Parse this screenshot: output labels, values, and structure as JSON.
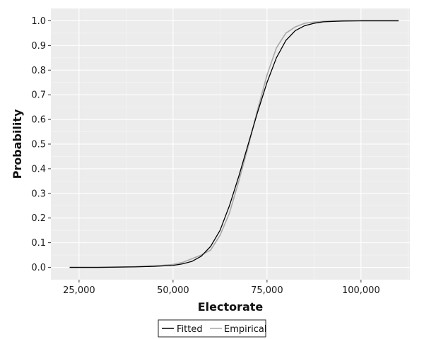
{
  "chart_data": {
    "type": "line",
    "title": "",
    "xlabel": "Electorate",
    "ylabel": "Probability",
    "xlim": [
      17500,
      113000
    ],
    "ylim": [
      0,
      1.0
    ],
    "x_ticks": [
      25000,
      50000,
      75000,
      100000
    ],
    "x_tick_labels": [
      "25,000",
      "50,000",
      "75,000",
      "100,000"
    ],
    "y_ticks": [
      0,
      0.1,
      0.2,
      0.3,
      0.4,
      0.5,
      0.6,
      0.7,
      0.8,
      0.9,
      1.0
    ],
    "y_tick_labels": [
      "0.0",
      "0.1",
      "0.2",
      "0.3",
      "0.4",
      "0.5",
      "0.6",
      "0.7",
      "0.8",
      "0.9",
      "1.0"
    ],
    "grid": true,
    "legend_position": "bottom",
    "series": [
      {
        "name": "Fitted",
        "color": "#000000",
        "x": [
          22500,
          30000,
          40000,
          45000,
          50000,
          52500,
          55000,
          57500,
          60000,
          62500,
          65000,
          67500,
          70000,
          72500,
          75000,
          77500,
          80000,
          82500,
          85000,
          87500,
          90000,
          95000,
          100000,
          110000
        ],
        "y": [
          0.0,
          0.0,
          0.002,
          0.004,
          0.008,
          0.014,
          0.024,
          0.045,
          0.085,
          0.15,
          0.25,
          0.37,
          0.5,
          0.63,
          0.75,
          0.85,
          0.92,
          0.96,
          0.98,
          0.99,
          0.996,
          0.999,
          1.0,
          1.0
        ]
      },
      {
        "name": "Empirical",
        "color": "#a8a8a8",
        "x": [
          22500,
          30000,
          40000,
          47000,
          50000,
          52500,
          55000,
          57500,
          60000,
          62500,
          65000,
          67500,
          70000,
          72500,
          75000,
          77500,
          80000,
          82500,
          85000,
          87500,
          90000,
          95000,
          100000,
          110000
        ],
        "y": [
          0.0,
          0.0,
          0.003,
          0.008,
          0.012,
          0.02,
          0.035,
          0.05,
          0.07,
          0.13,
          0.22,
          0.35,
          0.49,
          0.64,
          0.78,
          0.89,
          0.95,
          0.975,
          0.99,
          0.995,
          0.998,
          1.0,
          1.0,
          1.0
        ]
      }
    ]
  }
}
